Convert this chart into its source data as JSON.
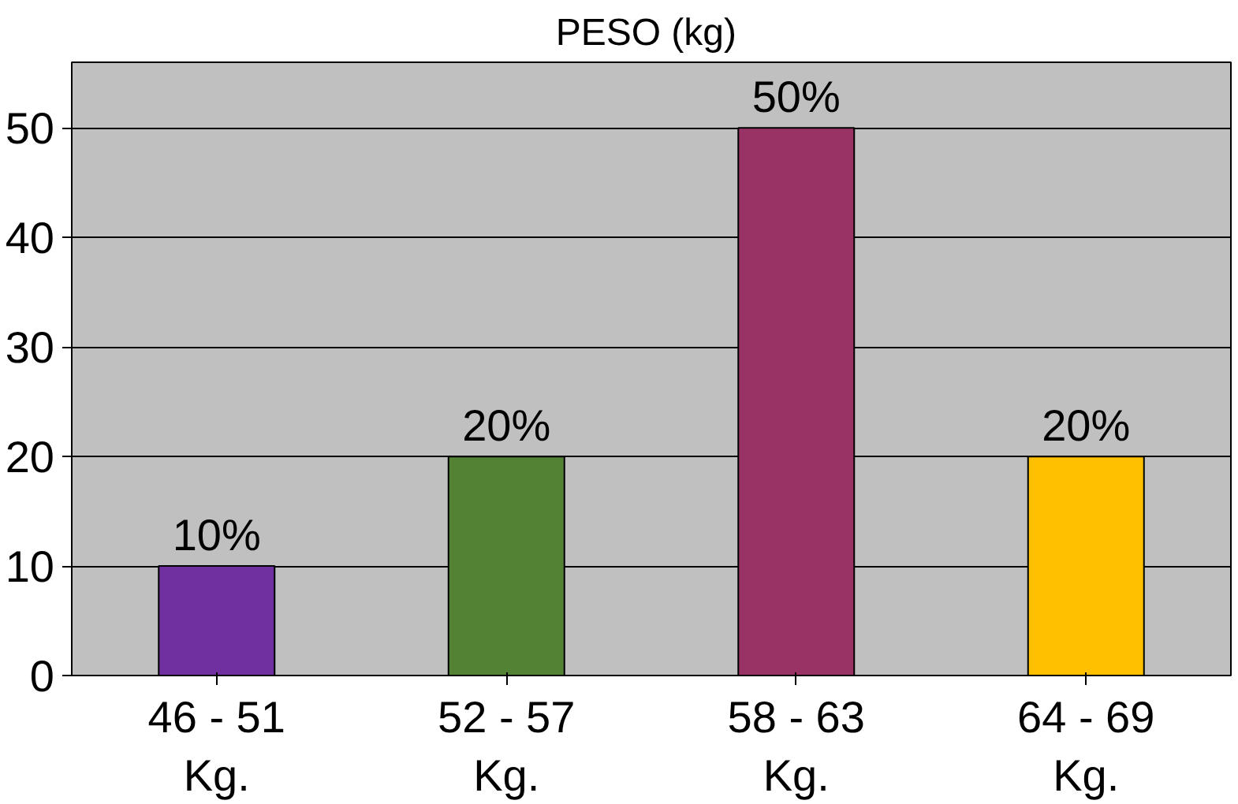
{
  "chart_data": {
    "type": "bar",
    "title": "PESO  (kg)",
    "categories": [
      "46 - 51\nKg.",
      "52 - 57\nKg.",
      "58 - 63\nKg.",
      "64 - 69\nKg."
    ],
    "values": [
      10,
      20,
      50,
      20
    ],
    "colors": [
      "#7030a0",
      "#548235",
      "#993366",
      "#ffc000"
    ],
    "value_labels": [
      "10%",
      "20%",
      "50%",
      "20%"
    ],
    "ylim": [
      0,
      56
    ],
    "yticks": [
      0,
      10,
      20,
      30,
      40,
      50
    ],
    "grid": "y"
  }
}
